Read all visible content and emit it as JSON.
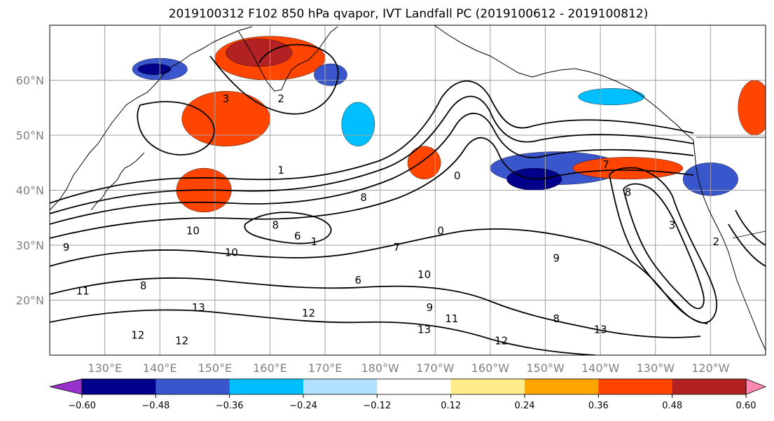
{
  "title": "2019100312 F102 850 hPa qvapor, IVT Landfall PC (2019100612 - 2019100812)",
  "map": {
    "lat_range": [
      10,
      70
    ],
    "lon_range": [
      120,
      250
    ],
    "lat_labels": [
      {
        "lat": 20,
        "label": "20°N"
      },
      {
        "lat": 30,
        "label": "30°N"
      },
      {
        "lat": 40,
        "label": "40°N"
      },
      {
        "lat": 50,
        "label": "50°N"
      },
      {
        "lat": 60,
        "label": "60°N"
      }
    ],
    "lon_labels": [
      {
        "lon": 130,
        "label": "130°E"
      },
      {
        "lon": 140,
        "label": "140°E"
      },
      {
        "lon": 150,
        "label": "150°E"
      },
      {
        "lon": 160,
        "label": "160°E"
      },
      {
        "lon": 170,
        "label": "170°E"
      },
      {
        "lon": 180,
        "label": "180°W"
      },
      {
        "lon": 190,
        "label": "170°W"
      },
      {
        "lon": 200,
        "label": "160°W"
      },
      {
        "lon": 210,
        "label": "150°W"
      },
      {
        "lon": 220,
        "label": "140°W"
      },
      {
        "lon": 230,
        "label": "130°W"
      },
      {
        "lon": 240,
        "label": "120°W"
      }
    ],
    "grid_lat_lines": [
      20,
      30,
      40,
      50,
      60
    ],
    "grid_lon_lines": [
      130,
      140,
      150,
      160,
      170,
      180,
      190,
      200,
      210,
      220,
      230,
      240
    ],
    "grid_color": "#a0a0a0"
  },
  "colorbar": {
    "colors": [
      "#9932cc",
      "#00008b",
      "#3a56cc",
      "#00bfff",
      "#b0e2ff",
      "#ffffff",
      "#ffec8b",
      "#ffa500",
      "#ff4500",
      "#b22222",
      "#ff88b0"
    ],
    "boundaries": [
      -0.72,
      -0.6,
      -0.48,
      -0.36,
      -0.24,
      -0.12,
      0.12,
      0.24,
      0.36,
      0.48,
      0.6,
      0.72
    ],
    "tick_labels": [
      "−0.60",
      "−0.48",
      "−0.36",
      "−0.24",
      "−0.12",
      "0.12",
      "0.24",
      "0.36",
      "0.48",
      "0.60"
    ],
    "tick_values": [
      -0.6,
      -0.48,
      -0.36,
      -0.24,
      -0.12,
      0.12,
      0.24,
      0.36,
      0.48,
      0.6
    ]
  },
  "anomaly_patches": [
    {
      "lon": 152,
      "lat": 53,
      "rlon": 8,
      "rlat": 5,
      "color": "#ff4500"
    },
    {
      "lon": 160,
      "lat": 64,
      "rlon": 10,
      "rlat": 4,
      "color": "#ff4500"
    },
    {
      "lon": 158,
      "lat": 65,
      "rlon": 6,
      "rlat": 2.5,
      "color": "#b22222"
    },
    {
      "lon": 140,
      "lat": 62,
      "rlon": 5,
      "rlat": 2,
      "color": "#3a56cc"
    },
    {
      "lon": 139,
      "lat": 62,
      "rlon": 3,
      "rlat": 1,
      "color": "#00008b"
    },
    {
      "lon": 171,
      "lat": 61,
      "rlon": 3,
      "rlat": 2,
      "color": "#3a56cc"
    },
    {
      "lon": 176,
      "lat": 52,
      "rlon": 3,
      "rlat": 4,
      "color": "#00bfff"
    },
    {
      "lon": 148,
      "lat": 40,
      "rlon": 5,
      "rlat": 4,
      "color": "#ff4500"
    },
    {
      "lon": 188,
      "lat": 45,
      "rlon": 3,
      "rlat": 3,
      "color": "#ff4500"
    },
    {
      "lon": 212,
      "lat": 44,
      "rlon": 12,
      "rlat": 3,
      "color": "#3a56cc"
    },
    {
      "lon": 208,
      "lat": 42,
      "rlon": 5,
      "rlat": 2,
      "color": "#00008b"
    },
    {
      "lon": 225,
      "lat": 44,
      "rlon": 10,
      "rlat": 2,
      "color": "#ff4500"
    },
    {
      "lon": 222,
      "lat": 57,
      "rlon": 6,
      "rlat": 1.5,
      "color": "#00bfff"
    },
    {
      "lon": 240,
      "lat": 42,
      "rlon": 5,
      "rlat": 3,
      "color": "#3a56cc"
    },
    {
      "lon": 248,
      "lat": 55,
      "rlon": 3,
      "rlat": 5,
      "color": "#ff4500"
    }
  ],
  "contour_labels": [
    {
      "lon": 152,
      "lat": 56,
      "text": "3"
    },
    {
      "lon": 162,
      "lat": 56,
      "text": "2"
    },
    {
      "lon": 162,
      "lat": 43,
      "text": "1"
    },
    {
      "lon": 153,
      "lat": 28,
      "text": "10"
    },
    {
      "lon": 161,
      "lat": 33,
      "text": "8"
    },
    {
      "lon": 165,
      "lat": 31,
      "text": "6"
    },
    {
      "lon": 168,
      "lat": 30,
      "text": "1"
    },
    {
      "lon": 146,
      "lat": 32,
      "text": "10"
    },
    {
      "lon": 137,
      "lat": 22,
      "text": "8"
    },
    {
      "lon": 126,
      "lat": 21,
      "text": "11"
    },
    {
      "lon": 147,
      "lat": 18,
      "text": "13"
    },
    {
      "lon": 136,
      "lat": 13,
      "text": "12"
    },
    {
      "lon": 144,
      "lat": 12,
      "text": "12"
    },
    {
      "lon": 167,
      "lat": 17,
      "text": "12"
    },
    {
      "lon": 176,
      "lat": 23,
      "text": "6"
    },
    {
      "lon": 188,
      "lat": 24,
      "text": "10"
    },
    {
      "lon": 189,
      "lat": 18,
      "text": "9"
    },
    {
      "lon": 193,
      "lat": 16,
      "text": "11"
    },
    {
      "lon": 188,
      "lat": 14,
      "text": "13"
    },
    {
      "lon": 202,
      "lat": 12,
      "text": "12"
    },
    {
      "lon": 212,
      "lat": 16,
      "text": "8"
    },
    {
      "lon": 220,
      "lat": 14,
      "text": "13"
    },
    {
      "lon": 233,
      "lat": 33,
      "text": "3"
    },
    {
      "lon": 241,
      "lat": 30,
      "text": "2"
    },
    {
      "lon": 212,
      "lat": 27,
      "text": "9"
    },
    {
      "lon": 194,
      "lat": 42,
      "text": "0"
    },
    {
      "lon": 221,
      "lat": 44,
      "text": "7"
    },
    {
      "lon": 225,
      "lat": 39,
      "text": "8"
    },
    {
      "lon": 191,
      "lat": 32,
      "text": "0"
    },
    {
      "lon": 183,
      "lat": 29,
      "text": "7"
    },
    {
      "lon": 177,
      "lat": 38,
      "text": "8"
    },
    {
      "lon": 123,
      "lat": 29,
      "text": "9"
    }
  ],
  "colors": {
    "contour": "#000000",
    "coast": "#000000",
    "tick_label": "#808080"
  }
}
